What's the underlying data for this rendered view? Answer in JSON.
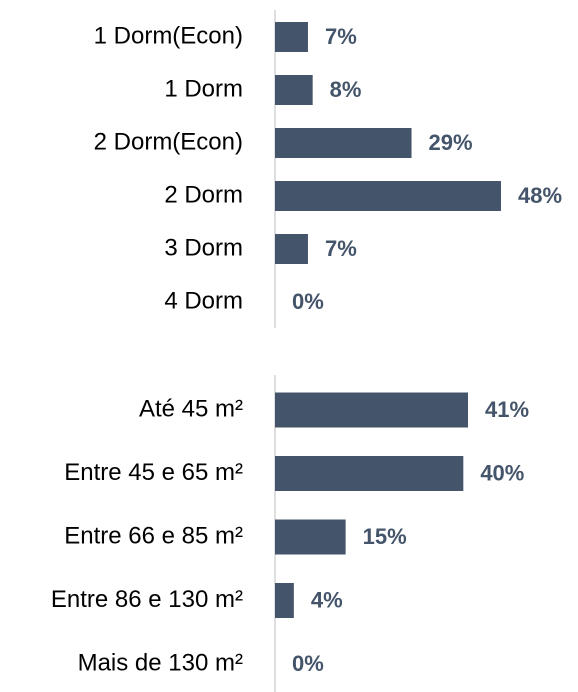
{
  "chart_data": [
    {
      "type": "bar",
      "orientation": "horizontal",
      "color": "#44546a",
      "categories": [
        "1 Dorm(Econ)",
        "1 Dorm",
        "2 Dorm(Econ)",
        "2 Dorm",
        "3 Dorm",
        "4 Dorm"
      ],
      "values": [
        7,
        8,
        29,
        48,
        7,
        0
      ],
      "value_labels": [
        "7%",
        "8%",
        "29%",
        "48%",
        "7%",
        "0%"
      ],
      "xlim": [
        0,
        50
      ]
    },
    {
      "type": "bar",
      "orientation": "horizontal",
      "color": "#44546a",
      "categories": [
        "Até 45 m²",
        "Entre 45 e 65 m²",
        "Entre 66 e 85 m²",
        "Entre 86 e 130 m²",
        "Mais de 130 m²"
      ],
      "values": [
        41,
        40,
        15,
        4,
        0
      ],
      "value_labels": [
        "41%",
        "40%",
        "15%",
        "4%",
        "0%"
      ],
      "xlim": [
        0,
        50
      ]
    }
  ]
}
